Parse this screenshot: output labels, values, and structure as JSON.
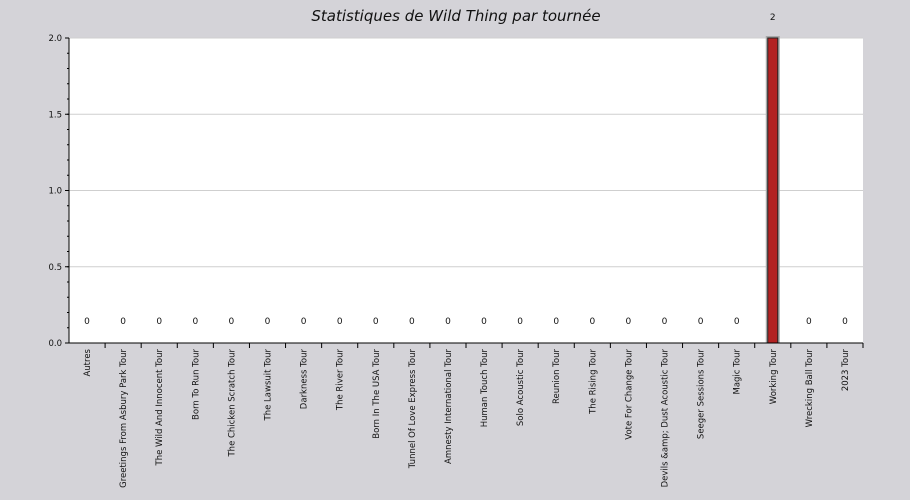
{
  "chart_data": {
    "type": "bar",
    "title": "Statistiques de Wild Thing par tournée",
    "xlabel": "",
    "ylabel": "",
    "ylim": [
      0,
      2
    ],
    "yticks": [
      "0.0",
      "0.5",
      "1.0",
      "1.5",
      "2.0"
    ],
    "grid": true,
    "legend": "none",
    "bar_color": "#b22222",
    "categories": [
      "Autres",
      "Greetings From Asbury Park Tour",
      "The Wild And Innocent Tour",
      "Born To Run Tour",
      "The Chicken Scratch Tour",
      "The Lawsuit Tour",
      "Darkness Tour",
      "The River Tour",
      "Born In The USA Tour",
      "Tunnel Of Love Express Tour",
      "Amnesty International Tour",
      "Human Touch Tour",
      "Solo Acoustic Tour",
      "Reunion Tour",
      "The Rising Tour",
      "Vote For Change Tour",
      "Devils &amp; Dust Acoustic Tour",
      "Seeger Sessions Tour",
      "Magic Tour",
      "Working Tour",
      "Wrecking Ball Tour",
      "2023 Tour"
    ],
    "values": [
      0,
      0,
      0,
      0,
      0,
      0,
      0,
      0,
      0,
      0,
      0,
      0,
      0,
      0,
      0,
      0,
      0,
      0,
      0,
      2,
      0,
      0
    ],
    "data_labels": [
      "0",
      "0",
      "0",
      "0",
      "0",
      "0",
      "0",
      "0",
      "0",
      "0",
      "0",
      "0",
      "0",
      "0",
      "0",
      "0",
      "0",
      "0",
      "0",
      "2",
      "0",
      "0"
    ]
  }
}
